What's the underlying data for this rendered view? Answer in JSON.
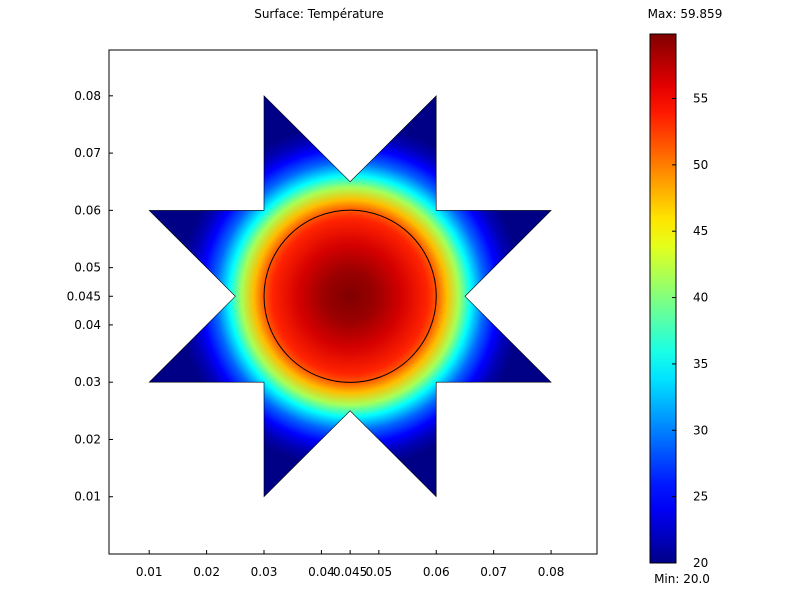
{
  "chart_data": {
    "type": "heatmap",
    "title": "Surface: Température",
    "xlabel": "",
    "ylabel": "",
    "xlim": [
      0.003,
      0.088
    ],
    "ylim": [
      0.0,
      0.088
    ],
    "x_ticks": [
      {
        "value": 0.01,
        "label": "0.01"
      },
      {
        "value": 0.02,
        "label": "0.02"
      },
      {
        "value": 0.03,
        "label": "0.03"
      },
      {
        "value": 0.04,
        "label": "0.04"
      },
      {
        "value": 0.045,
        "label": "0.045"
      },
      {
        "value": 0.05,
        "label": "0.05"
      },
      {
        "value": 0.06,
        "label": "0.06"
      },
      {
        "value": 0.07,
        "label": "0.07"
      },
      {
        "value": 0.08,
        "label": "0.08"
      }
    ],
    "y_ticks": [
      {
        "value": 0.01,
        "label": "0.01"
      },
      {
        "value": 0.02,
        "label": "0.02"
      },
      {
        "value": 0.03,
        "label": "0.03"
      },
      {
        "value": 0.04,
        "label": "0.04"
      },
      {
        "value": 0.045,
        "label": "0.045"
      },
      {
        "value": 0.05,
        "label": "0.05"
      },
      {
        "value": 0.06,
        "label": "0.06"
      },
      {
        "value": 0.07,
        "label": "0.07"
      },
      {
        "value": 0.08,
        "label": "0.08"
      }
    ],
    "colorbar": {
      "min": 20.0,
      "max": 59.859,
      "min_label": "Min: 20.0",
      "max_label": "Max: 59.859",
      "ticks": [
        {
          "value": 20,
          "label": "20"
        },
        {
          "value": 25,
          "label": "25"
        },
        {
          "value": 30,
          "label": "30"
        },
        {
          "value": 35,
          "label": "35"
        },
        {
          "value": 40,
          "label": "40"
        },
        {
          "value": 45,
          "label": "45"
        },
        {
          "value": 50,
          "label": "50"
        },
        {
          "value": 55,
          "label": "55"
        }
      ],
      "colormap": "jet"
    },
    "domain_outline": [
      [
        0.03,
        0.08
      ],
      [
        0.045,
        0.065
      ],
      [
        0.06,
        0.08
      ],
      [
        0.06,
        0.06
      ],
      [
        0.08,
        0.06
      ],
      [
        0.065,
        0.045
      ],
      [
        0.08,
        0.03
      ],
      [
        0.06,
        0.03
      ],
      [
        0.06,
        0.01
      ],
      [
        0.045,
        0.025
      ],
      [
        0.03,
        0.01
      ],
      [
        0.03,
        0.03
      ],
      [
        0.01,
        0.03
      ],
      [
        0.025,
        0.045
      ],
      [
        0.01,
        0.06
      ],
      [
        0.03,
        0.06
      ]
    ],
    "inner_circle": {
      "center": [
        0.045,
        0.045
      ],
      "radius": 0.015
    },
    "field": {
      "center": [
        0.045,
        0.045
      ],
      "peak_value": 59.859,
      "boundary_value": 20.0,
      "inner_value_at_circle": 50
    }
  }
}
